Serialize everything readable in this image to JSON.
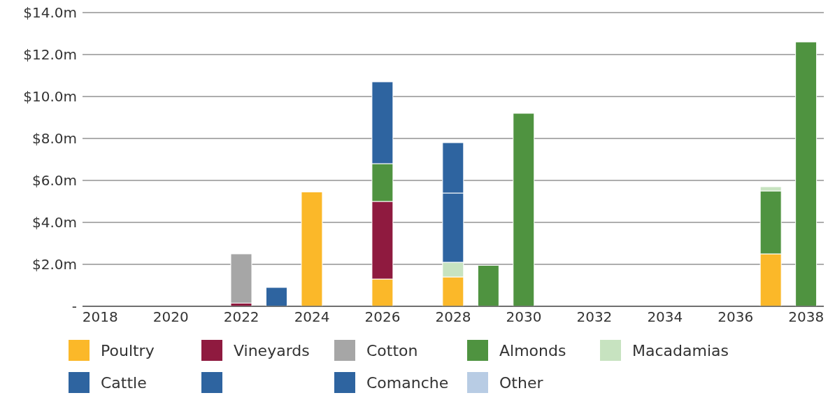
{
  "chart_data": {
    "type": "bar",
    "stacked": true,
    "categories": [
      "2018",
      null,
      "2020",
      null,
      "2022",
      null,
      "2024",
      null,
      "2026",
      null,
      "2028",
      null,
      "2030",
      null,
      "2032",
      null,
      "2034",
      null,
      "2036",
      null,
      "2038"
    ],
    "series": [
      {
        "name": "Poultry",
        "color": "#fbb829",
        "values": [
          null,
          null,
          null,
          null,
          null,
          null,
          5.45,
          null,
          1.3,
          null,
          1.4,
          null,
          null,
          null,
          null,
          null,
          null,
          null,
          null,
          2.5,
          null
        ]
      },
      {
        "name": "Vineyards",
        "color": "#8f1a3f",
        "values": [
          null,
          null,
          null,
          null,
          0.15,
          null,
          null,
          null,
          3.7,
          null,
          null,
          null,
          null,
          null,
          null,
          null,
          null,
          null,
          null,
          null,
          null
        ]
      },
      {
        "name": "Cotton",
        "color": "#a6a6a6",
        "values": [
          null,
          null,
          null,
          null,
          2.35,
          null,
          null,
          null,
          null,
          null,
          null,
          null,
          null,
          null,
          null,
          null,
          null,
          null,
          null,
          null,
          null
        ]
      },
      {
        "name": "Almonds",
        "color": "#4f9340",
        "values": [
          null,
          null,
          null,
          null,
          null,
          null,
          null,
          null,
          1.8,
          null,
          null,
          1.95,
          9.2,
          null,
          null,
          null,
          null,
          null,
          null,
          3.0,
          12.6
        ]
      },
      {
        "name": "Macadamias",
        "color": "#c7e3c0",
        "values": [
          null,
          null,
          null,
          null,
          null,
          null,
          null,
          null,
          null,
          null,
          0.7,
          null,
          null,
          null,
          null,
          null,
          null,
          null,
          null,
          0.2,
          null
        ]
      },
      {
        "name": "Cattle",
        "color": "#2e64a0",
        "values": [
          null,
          null,
          null,
          null,
          null,
          null,
          null,
          null,
          3.9,
          null,
          3.3,
          null,
          null,
          null,
          null,
          null,
          null,
          null,
          null,
          null,
          null
        ]
      },
      {
        "color": "#2e64a0",
        "values": [
          null,
          null,
          null,
          null,
          null,
          null,
          null,
          null,
          null,
          null,
          2.4,
          null,
          null,
          null,
          null,
          null,
          null,
          null,
          null,
          null,
          null
        ]
      },
      {
        "name": "Comanche",
        "color": "#2e64a0",
        "values": [
          null,
          null,
          null,
          null,
          null,
          0.9,
          null,
          null,
          null,
          null,
          null,
          null,
          null,
          null,
          null,
          null,
          null,
          null,
          null,
          null,
          null
        ]
      },
      {
        "name": "Other",
        "color": "#b8cce4",
        "values": [
          null,
          null,
          null,
          null,
          null,
          null,
          null,
          null,
          null,
          null,
          null,
          null,
          null,
          null,
          null,
          null,
          null,
          null,
          null,
          null,
          null
        ]
      }
    ],
    "ylim": [
      0,
      14
    ],
    "yticks": [
      {
        "value": 0,
        "label": "-"
      },
      {
        "value": 2,
        "label": "$2.0m"
      },
      {
        "value": 4,
        "label": "$4.0m"
      },
      {
        "value": 6,
        "label": "$6.0m"
      },
      {
        "value": 8,
        "label": "$8.0m"
      },
      {
        "value": 10,
        "label": "$10.0m"
      },
      {
        "value": 12,
        "label": "$12.0m"
      },
      {
        "value": 14,
        "label": "$14.0m"
      }
    ],
    "grid": "y",
    "legend": "bottom"
  }
}
